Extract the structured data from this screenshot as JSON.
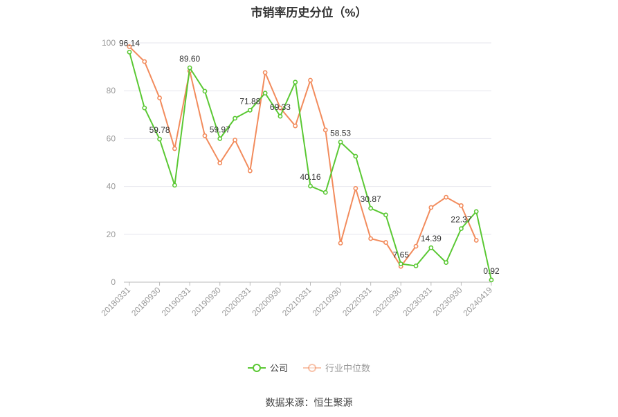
{
  "chart_data": {
    "type": "line",
    "title": "市销率历史分位（%）",
    "ylim": [
      0,
      100
    ],
    "yticks": [
      0,
      20,
      40,
      60,
      80,
      100
    ],
    "x_tick_labels": [
      "20180331",
      "20180930",
      "20190331",
      "20190930",
      "20200331",
      "20200930",
      "20210331",
      "20210930",
      "20220331",
      "20220930",
      "20230331",
      "20230930",
      "20240419"
    ],
    "x_tick_positions": [
      0,
      2,
      4,
      6,
      8,
      10,
      12,
      14,
      16,
      18,
      20,
      22,
      24
    ],
    "series": [
      {
        "name": "公司",
        "color": "#5ac833",
        "values": [
          96.14,
          72.8,
          59.78,
          40.5,
          89.6,
          79.8,
          59.97,
          68.5,
          71.88,
          79.0,
          69.33,
          83.6,
          40.16,
          37.5,
          58.53,
          52.6,
          30.87,
          28.1,
          7.65,
          6.8,
          14.39,
          8.2,
          22.37,
          29.5,
          0.92
        ],
        "data_labels": [
          {
            "i": 0,
            "text": "96.14"
          },
          {
            "i": 2,
            "text": "59.78"
          },
          {
            "i": 4,
            "text": "89.60"
          },
          {
            "i": 6,
            "text": "59.97"
          },
          {
            "i": 8,
            "text": "71.88"
          },
          {
            "i": 10,
            "text": "69.33"
          },
          {
            "i": 12,
            "text": "40.16"
          },
          {
            "i": 14,
            "text": "58.53"
          },
          {
            "i": 16,
            "text": "30.87"
          },
          {
            "i": 18,
            "text": "7.65"
          },
          {
            "i": 20,
            "text": "14.39"
          },
          {
            "i": 22,
            "text": "22.37"
          },
          {
            "i": 24,
            "text": "0.92"
          }
        ]
      },
      {
        "name": "行业中位数",
        "color": "#f28b5c",
        "values": [
          98.4,
          92.2,
          77.0,
          55.8,
          88.3,
          61.2,
          49.8,
          59.4,
          46.5,
          87.6,
          72.8,
          65.3,
          84.4,
          63.6,
          16.3,
          39.2,
          18.2,
          16.6,
          6.6,
          15.0,
          31.2,
          35.5,
          32.0,
          17.5,
          null
        ]
      }
    ],
    "grid": true,
    "legend_position": "bottom"
  },
  "footer": {
    "source": "数据来源：恒生聚源"
  }
}
